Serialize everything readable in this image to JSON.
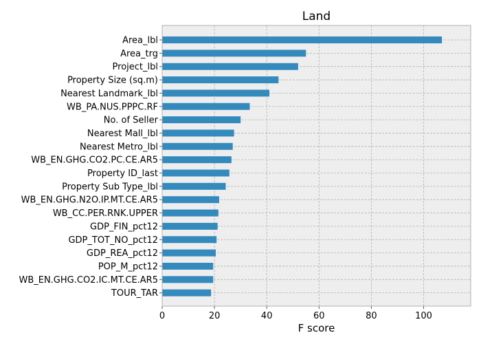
{
  "chart_data": {
    "type": "bar",
    "orientation": "horizontal",
    "title": "Land",
    "xlabel": "F score",
    "ylabel": "",
    "xlim": [
      0,
      118
    ],
    "xticks": [
      0,
      20,
      40,
      60,
      80,
      100
    ],
    "grid": true,
    "categories": [
      "Area_lbl",
      "Area_trg",
      "Project_lbl",
      "Property Size (sq.m)",
      "Nearest Landmark_lbl",
      "WB_PA.NUS.PPPC.RF",
      "No. of Seller",
      "Nearest Mall_lbl",
      "Nearest Metro_lbl",
      "WB_EN.GHG.CO2.PC.CE.AR5",
      "Property ID_last",
      "Property Sub Type_lbl",
      "WB_EN.GHG.N2O.IP.MT.CE.AR5",
      "WB_CC.PER.RNK.UPPER",
      "GDP_FIN_pct12",
      "GDP_TOT_NO_pct12",
      "GDP_REA_pct12",
      "POP_M_pct12",
      "WB_EN.GHG.CO2.IC.MT.CE.AR5",
      "TOUR_TAR"
    ],
    "values": [
      107,
      55,
      52,
      44.5,
      41,
      33.5,
      30,
      27.5,
      27,
      26.5,
      25.7,
      24.3,
      21.8,
      21.5,
      21.2,
      20.8,
      20.5,
      19.5,
      19.5,
      18.7
    ],
    "bar_color": "#348abd",
    "background_color": "#eeeeee",
    "grid_color": "#b0b0b0"
  }
}
